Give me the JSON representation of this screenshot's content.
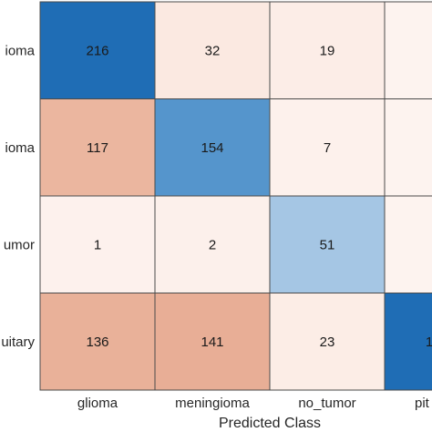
{
  "chart_data": {
    "type": "heatmap",
    "title": "",
    "xlabel": "Predicted Class",
    "ylabel": "",
    "x_categories": [
      "glioma",
      "meningioma",
      "no_tumor",
      "pituitary"
    ],
    "y_categories": [
      "glioma",
      "meningioma",
      "no_tumor",
      "pituitary"
    ],
    "visible_row_labels": [
      "ioma",
      "ioma",
      "umor",
      "uitary"
    ],
    "visible_col_labels": [
      "glioma",
      "meningioma",
      "no_tumor",
      "pit"
    ],
    "values": [
      [
        216,
        32,
        19,
        null
      ],
      [
        117,
        154,
        7,
        null
      ],
      [
        1,
        2,
        51,
        null
      ],
      [
        136,
        141,
        23,
        null
      ]
    ],
    "cell_labels": [
      [
        "216",
        "32",
        "19",
        ""
      ],
      [
        "117",
        "154",
        "7",
        ""
      ],
      [
        "1",
        "2",
        "51",
        ""
      ],
      [
        "136",
        "141",
        "23",
        "1"
      ]
    ],
    "colors": {
      "diagonal_scale": [
        "#dbe8f4",
        "#8fb8dd",
        "#5e9bd0",
        "#1f6db5"
      ],
      "offdiagonal_scale": [
        "#fdf3ef",
        "#fae6dd",
        "#f2c6b2",
        "#e8ae96"
      ],
      "grid_line": "#4a4a4a",
      "background": "#ffffff",
      "text": "#1a1a1a"
    },
    "grid": true,
    "legend": "none"
  }
}
